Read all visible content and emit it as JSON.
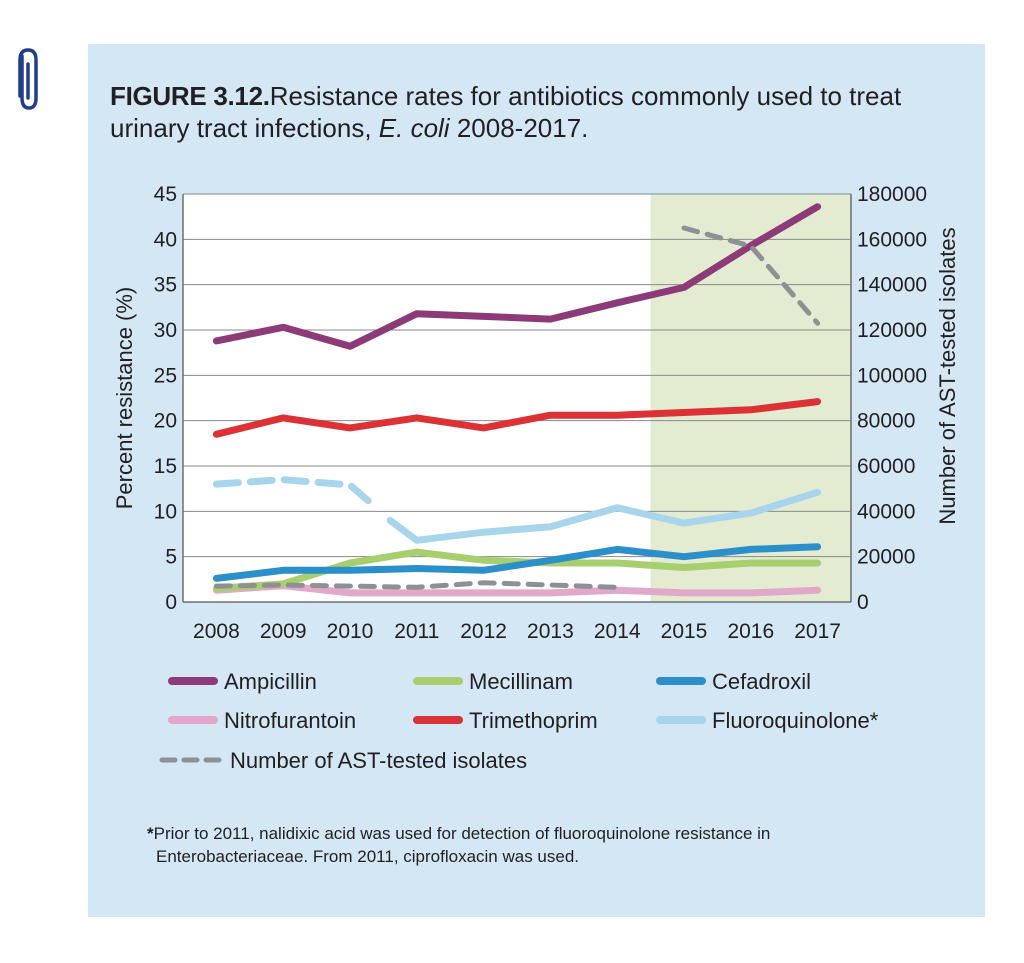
{
  "figure": {
    "label": "FIGURE 3.12.",
    "title_part1": "Resistance rates for antibiotics commonly used to treat urinary tract infections, ",
    "title_italic": "E. coli",
    "title_part2": " 2008-2017."
  },
  "icons": {
    "clip": "paperclip-icon"
  },
  "footnote": {
    "asterisk": "*",
    "line1": "Prior to 2011, nalidixic acid was used for detection of fluoroquinolone resistance in",
    "line2": "Enterobacteriaceae. From 2011, ciprofloxacin was used."
  },
  "colors": {
    "panel": "#d3e7f5",
    "highlight": "#e3ecd0",
    "Ampicillin": "#8c3b78",
    "Mecillinam": "#a8cf6e",
    "Cefadroxil": "#2b8fc9",
    "Nitrofurantoin": "#e2a8c9",
    "Trimethoprim": "#dc3235",
    "Fluoroquinolone*": "#a7d6ec",
    "isolates": "#8e9193"
  },
  "chart_data": {
    "type": "line",
    "x": [
      "2008",
      "2009",
      "2010",
      "2011",
      "2012",
      "2013",
      "2014",
      "2015",
      "2016",
      "2017"
    ],
    "ylabel": "Percent resistance (%)",
    "y2label": "Number of AST-tested isolates",
    "ylim": [
      0,
      45
    ],
    "y2lim": [
      0,
      180000
    ],
    "yticks": [
      "0",
      "5",
      "10",
      "15",
      "20",
      "25",
      "30",
      "35",
      "40",
      "45"
    ],
    "y2ticks": [
      "0",
      "20000",
      "40000",
      "60000",
      "80000",
      "100000",
      "120000",
      "140000",
      "160000",
      "180000"
    ],
    "grid": true,
    "highlight_range": [
      "2015",
      "2017"
    ],
    "legend_position": "bottom",
    "series": [
      {
        "name": "Ampicillin",
        "axis": "left",
        "style": "solid",
        "values": [
          28.8,
          30.3,
          28.2,
          31.8,
          31.5,
          31.2,
          33.0,
          34.7,
          39.3,
          43.6
        ]
      },
      {
        "name": "Mecillinam",
        "axis": "left",
        "style": "solid",
        "values": [
          1.5,
          2.0,
          4.3,
          5.5,
          4.6,
          4.3,
          4.3,
          3.8,
          4.3,
          4.3
        ]
      },
      {
        "name": "Cefadroxil",
        "axis": "left",
        "style": "solid",
        "values": [
          2.6,
          3.5,
          3.5,
          3.7,
          3.5,
          4.6,
          5.8,
          5.0,
          5.8,
          6.1
        ]
      },
      {
        "name": "Nitrofurantoin",
        "axis": "left",
        "style": "solid",
        "values": [
          1.3,
          1.8,
          1.0,
          1.0,
          1.0,
          1.0,
          1.3,
          1.0,
          1.0,
          1.3
        ]
      },
      {
        "name": "Trimethoprim",
        "axis": "left",
        "style": "solid",
        "values": [
          18.5,
          20.3,
          19.2,
          20.3,
          19.2,
          20.6,
          20.6,
          20.9,
          21.2,
          22.1
        ]
      },
      {
        "name": "Fluoroquinolone*",
        "axis": "left",
        "style": "solid",
        "break_before": "2011",
        "segments": [
          {
            "style": "dashed",
            "x": [
              "2008",
              "2009",
              "2010",
              "2010.3"
            ],
            "values": [
              13.0,
              13.5,
              12.9,
              11.0
            ]
          },
          {
            "style": "solid",
            "x": [
              "2010.6",
              "2011",
              "2012",
              "2013",
              "2014",
              "2015",
              "2016",
              "2017"
            ],
            "values": [
              9.0,
              6.8,
              7.7,
              8.3,
              10.4,
              8.7,
              9.8,
              12.1
            ]
          }
        ]
      },
      {
        "name": "Number of AST-tested isolates",
        "axis": "right",
        "style": "dashed",
        "segments": [
          {
            "x": [
              "2008",
              "2009",
              "2010",
              "2011",
              "2012",
              "2013",
              "2014"
            ],
            "values": [
              7000,
              7500,
              7000,
              6500,
              8500,
              7500,
              6500
            ]
          },
          {
            "x": [
              "2015",
              "2016",
              "2017"
            ],
            "values": [
              165000,
              157000,
              123000
            ]
          }
        ]
      }
    ]
  }
}
